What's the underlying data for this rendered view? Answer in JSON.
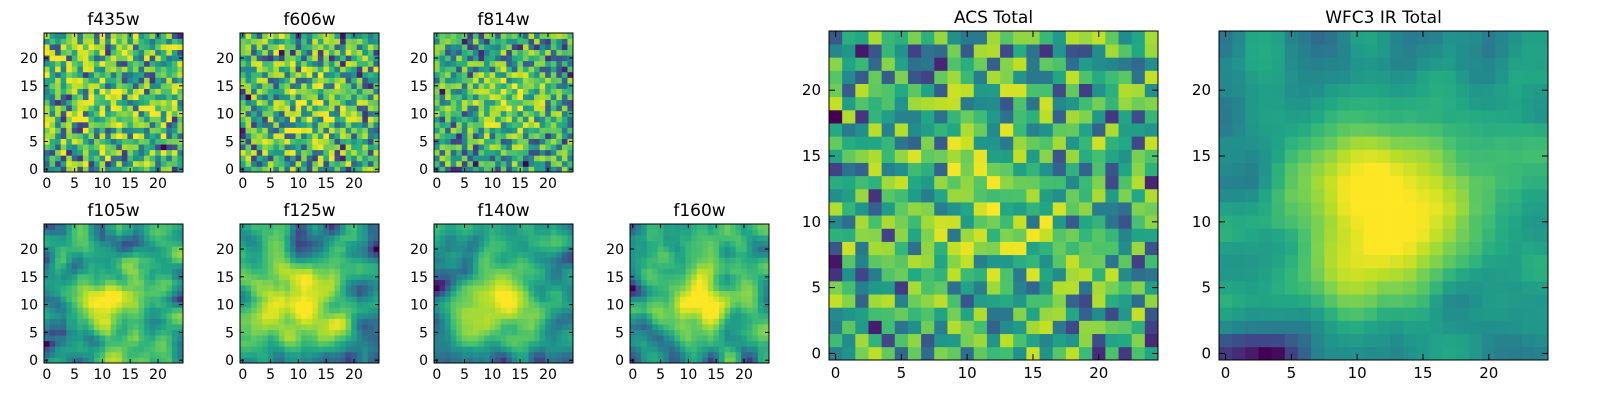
{
  "chart_data": {
    "type": "heatmap",
    "colormap": "viridis",
    "panels": [
      {
        "title": "f435w",
        "grid": 25,
        "xticks": [
          0,
          5,
          10,
          15,
          20
        ],
        "yticks": [
          0,
          5,
          10,
          15,
          20
        ],
        "smoothness": 0.0,
        "blob": 0.12,
        "cx": 12,
        "cy": 12,
        "seed": 11
      },
      {
        "title": "f606w",
        "grid": 25,
        "xticks": [
          0,
          5,
          10,
          15,
          20
        ],
        "yticks": [
          0,
          5,
          10,
          15,
          20
        ],
        "smoothness": 0.0,
        "blob": 0.18,
        "cx": 12,
        "cy": 11,
        "seed": 23
      },
      {
        "title": "f814w",
        "grid": 25,
        "xticks": [
          0,
          5,
          10,
          15,
          20
        ],
        "yticks": [
          0,
          5,
          10,
          15,
          20
        ],
        "smoothness": 0.0,
        "blob": 0.28,
        "cx": 13,
        "cy": 12,
        "seed": 37
      },
      {
        "title": "f105w",
        "grid": 25,
        "xticks": [
          0,
          5,
          10,
          15,
          20
        ],
        "yticks": [
          0,
          5,
          10,
          15,
          20
        ],
        "smoothness": 0.55,
        "blob": 0.45,
        "cx": 12,
        "cy": 10,
        "seed": 41
      },
      {
        "title": "f125w",
        "grid": 25,
        "xticks": [
          0,
          5,
          10,
          15,
          20
        ],
        "yticks": [
          0,
          5,
          10,
          15,
          20
        ],
        "smoothness": 0.5,
        "blob": 0.42,
        "cx": 11,
        "cy": 10,
        "seed": 53
      },
      {
        "title": "f140w",
        "grid": 25,
        "xticks": [
          0,
          5,
          10,
          15,
          20
        ],
        "yticks": [
          0,
          5,
          10,
          15,
          20
        ],
        "smoothness": 0.55,
        "blob": 0.5,
        "cx": 11,
        "cy": 11,
        "seed": 67
      },
      {
        "title": "f160w",
        "grid": 25,
        "xticks": [
          0,
          5,
          10,
          15,
          20
        ],
        "yticks": [
          0,
          5,
          10,
          15,
          20
        ],
        "smoothness": 0.6,
        "blob": 0.5,
        "cx": 12,
        "cy": 11,
        "seed": 79
      },
      {
        "title": "ACS Total",
        "grid": 25,
        "xticks": [
          0,
          5,
          10,
          15,
          20
        ],
        "yticks": [
          0,
          5,
          10,
          15,
          20
        ],
        "smoothness": 0.1,
        "blob": 0.22,
        "cx": 12,
        "cy": 11,
        "seed": 89
      },
      {
        "title": "WFC3 IR Total",
        "grid": 25,
        "xticks": [
          0,
          5,
          10,
          15,
          20
        ],
        "yticks": [
          0,
          5,
          10,
          15,
          20
        ],
        "smoothness": 0.7,
        "blob": 0.6,
        "cx": 12,
        "cy": 11,
        "seed": 97
      }
    ]
  }
}
